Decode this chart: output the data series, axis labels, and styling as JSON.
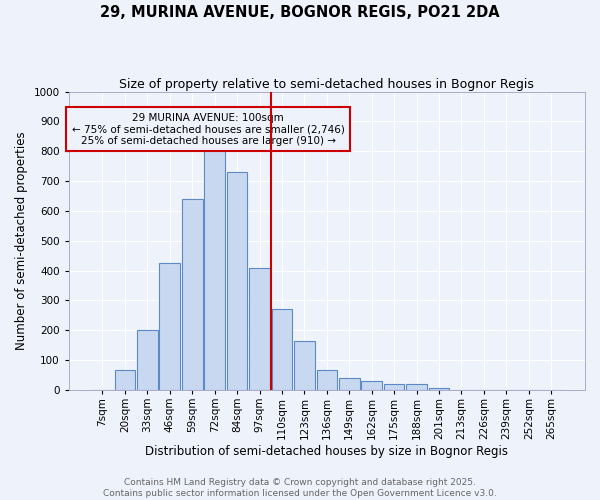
{
  "title": "29, MURINA AVENUE, BOGNOR REGIS, PO21 2DA",
  "subtitle": "Size of property relative to semi-detached houses in Bognor Regis",
  "xlabel": "Distribution of semi-detached houses by size in Bognor Regis",
  "ylabel": "Number of semi-detached properties",
  "categories": [
    "7sqm",
    "20sqm",
    "33sqm",
    "46sqm",
    "59sqm",
    "72sqm",
    "84sqm",
    "97sqm",
    "110sqm",
    "123sqm",
    "136sqm",
    "149sqm",
    "162sqm",
    "175sqm",
    "188sqm",
    "201sqm",
    "213sqm",
    "226sqm",
    "239sqm",
    "252sqm",
    "265sqm"
  ],
  "bar_heights": [
    0,
    65,
    200,
    425,
    640,
    820,
    730,
    410,
    270,
    165,
    65,
    40,
    30,
    20,
    20,
    5,
    0,
    0,
    0,
    0,
    0
  ],
  "bar_color": "#c8d8f0",
  "bar_edge_color": "#5b8ac5",
  "property_label": "29 MURINA AVENUE: 100sqm",
  "annotation_line1": "← 75% of semi-detached houses are smaller (2,746)",
  "annotation_line2": "25% of semi-detached houses are larger (910) →",
  "vline_color": "#cc0000",
  "ylim": [
    0,
    1000
  ],
  "yticks": [
    0,
    100,
    200,
    300,
    400,
    500,
    600,
    700,
    800,
    900,
    1000
  ],
  "background_color": "#eef2fb",
  "grid_color": "#ffffff",
  "footer_line1": "Contains HM Land Registry data © Crown copyright and database right 2025.",
  "footer_line2": "Contains public sector information licensed under the Open Government Licence v3.0.",
  "title_fontsize": 10.5,
  "subtitle_fontsize": 9,
  "axis_label_fontsize": 8.5,
  "tick_fontsize": 7.5,
  "annotation_fontsize": 7.5,
  "footer_fontsize": 6.5,
  "vline_index": 7.5
}
